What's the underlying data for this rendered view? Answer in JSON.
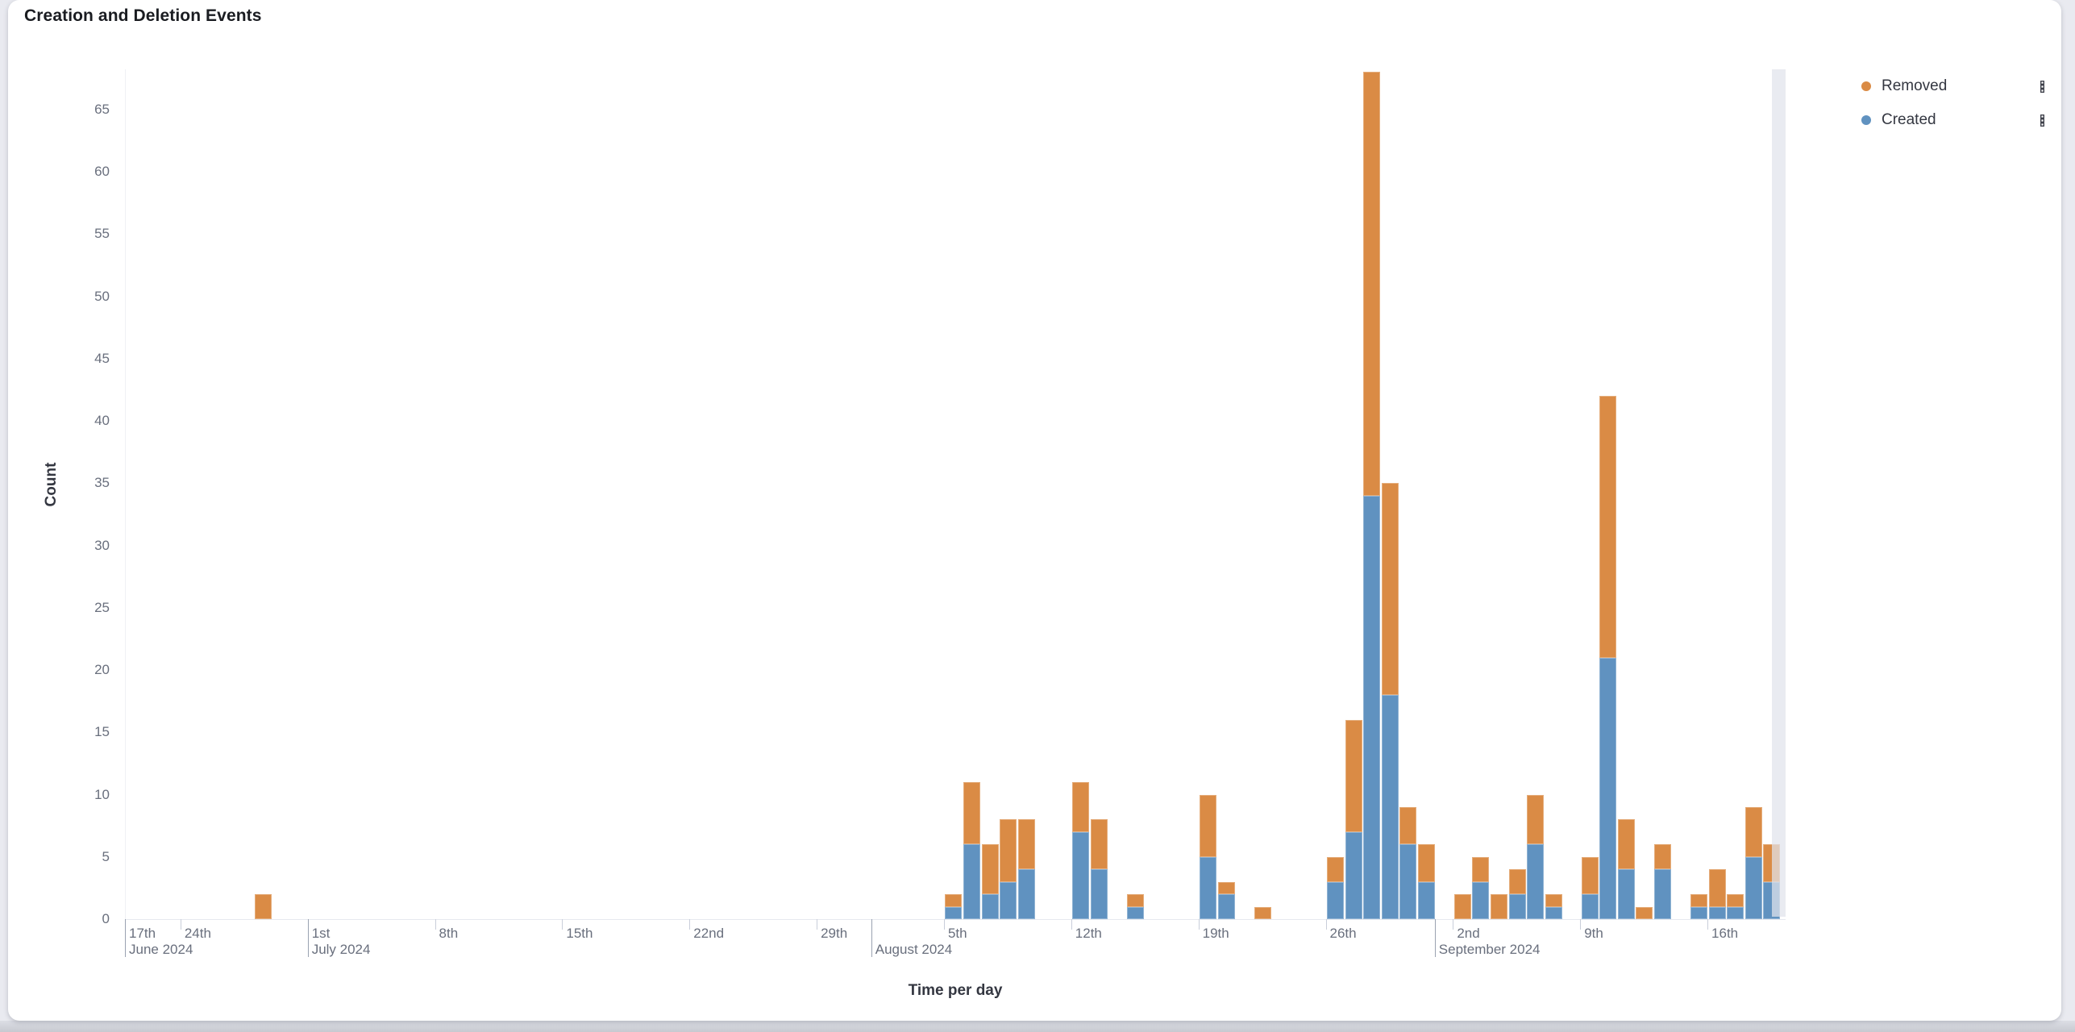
{
  "panel": {
    "title": "Creation and Deletion Events",
    "background": "#FFFFFF",
    "page_background": "#E9EAF0"
  },
  "legend": {
    "position": "top-right",
    "items": [
      {
        "label": "Removed",
        "color": "#DA8B45",
        "action_icon": "boxes-vertical-icon"
      },
      {
        "label": "Created",
        "color": "#6092C0",
        "action_icon": "boxes-vertical-icon"
      }
    ]
  },
  "chart_data": {
    "type": "bar",
    "stacked": true,
    "title": "Creation and Deletion Events",
    "xlabel": "Time per day",
    "ylabel": "Count",
    "ylim": [
      0,
      68
    ],
    "y_ticks": [
      0,
      5,
      10,
      15,
      20,
      25,
      30,
      35,
      40,
      45,
      50,
      55,
      60,
      65
    ],
    "x_domain": [
      "2024-06-21",
      "2024-09-20"
    ],
    "grid": false,
    "legend_entries": [
      "Removed",
      "Created"
    ],
    "series_colors": {
      "Removed": "#DA8B45",
      "Created": "#6092C0"
    },
    "stack_order_bottom_to_top": [
      "Created",
      "Removed"
    ],
    "x_ticks": [
      {
        "label": "17th",
        "date": "2024-06-17",
        "clamped": true
      },
      {
        "label": "24th",
        "date": "2024-06-24"
      },
      {
        "label": "1st",
        "date": "2024-07-01"
      },
      {
        "label": "8th",
        "date": "2024-07-08"
      },
      {
        "label": "15th",
        "date": "2024-07-15"
      },
      {
        "label": "22nd",
        "date": "2024-07-22"
      },
      {
        "label": "29th",
        "date": "2024-07-29"
      },
      {
        "label": "5th",
        "date": "2024-08-05"
      },
      {
        "label": "12th",
        "date": "2024-08-12"
      },
      {
        "label": "19th",
        "date": "2024-08-19"
      },
      {
        "label": "26th",
        "date": "2024-08-26"
      },
      {
        "label": "2nd",
        "date": "2024-09-02"
      },
      {
        "label": "9th",
        "date": "2024-09-09"
      },
      {
        "label": "16th",
        "date": "2024-09-16"
      }
    ],
    "month_labels": [
      {
        "label": "June 2024",
        "date": "2024-06-17",
        "clamped": true
      },
      {
        "label": "July 2024",
        "date": "2024-07-01"
      },
      {
        "label": "August 2024",
        "date": "2024-08-01"
      },
      {
        "label": "September 2024",
        "date": "2024-09-01"
      }
    ],
    "points": [
      {
        "date": "2024-06-28",
        "created": 0,
        "removed": 2
      },
      {
        "date": "2024-08-05",
        "created": 1,
        "removed": 1
      },
      {
        "date": "2024-08-06",
        "created": 6,
        "removed": 5
      },
      {
        "date": "2024-08-07",
        "created": 2,
        "removed": 4
      },
      {
        "date": "2024-08-08",
        "created": 3,
        "removed": 5
      },
      {
        "date": "2024-08-09",
        "created": 4,
        "removed": 4
      },
      {
        "date": "2024-08-12",
        "created": 7,
        "removed": 4
      },
      {
        "date": "2024-08-13",
        "created": 4,
        "removed": 4
      },
      {
        "date": "2024-08-15",
        "created": 1,
        "removed": 1
      },
      {
        "date": "2024-08-19",
        "created": 5,
        "removed": 5
      },
      {
        "date": "2024-08-20",
        "created": 2,
        "removed": 1
      },
      {
        "date": "2024-08-22",
        "created": 0,
        "removed": 1
      },
      {
        "date": "2024-08-26",
        "created": 3,
        "removed": 2
      },
      {
        "date": "2024-08-27",
        "created": 7,
        "removed": 9
      },
      {
        "date": "2024-08-28",
        "created": 34,
        "removed": 34
      },
      {
        "date": "2024-08-29",
        "created": 18,
        "removed": 17
      },
      {
        "date": "2024-08-30",
        "created": 6,
        "removed": 3
      },
      {
        "date": "2024-08-31",
        "created": 3,
        "removed": 3
      },
      {
        "date": "2024-09-02",
        "created": 0,
        "removed": 2
      },
      {
        "date": "2024-09-03",
        "created": 3,
        "removed": 2
      },
      {
        "date": "2024-09-04",
        "created": 0,
        "removed": 2
      },
      {
        "date": "2024-09-05",
        "created": 2,
        "removed": 2
      },
      {
        "date": "2024-09-06",
        "created": 6,
        "removed": 4
      },
      {
        "date": "2024-09-07",
        "created": 1,
        "removed": 1
      },
      {
        "date": "2024-09-09",
        "created": 2,
        "removed": 3
      },
      {
        "date": "2024-09-10",
        "created": 21,
        "removed": 21
      },
      {
        "date": "2024-09-11",
        "created": 4,
        "removed": 4
      },
      {
        "date": "2024-09-12",
        "created": 0,
        "removed": 1
      },
      {
        "date": "2024-09-13",
        "created": 4,
        "removed": 2
      },
      {
        "date": "2024-09-15",
        "created": 1,
        "removed": 1
      },
      {
        "date": "2024-09-16",
        "created": 1,
        "removed": 3
      },
      {
        "date": "2024-09-17",
        "created": 1,
        "removed": 1
      },
      {
        "date": "2024-09-18",
        "created": 5,
        "removed": 4
      },
      {
        "date": "2024-09-19",
        "created": 3,
        "removed": 3
      }
    ],
    "partial_bucket_band": {
      "from": "2024-09-19T12:00",
      "to": "2024-09-20"
    }
  }
}
